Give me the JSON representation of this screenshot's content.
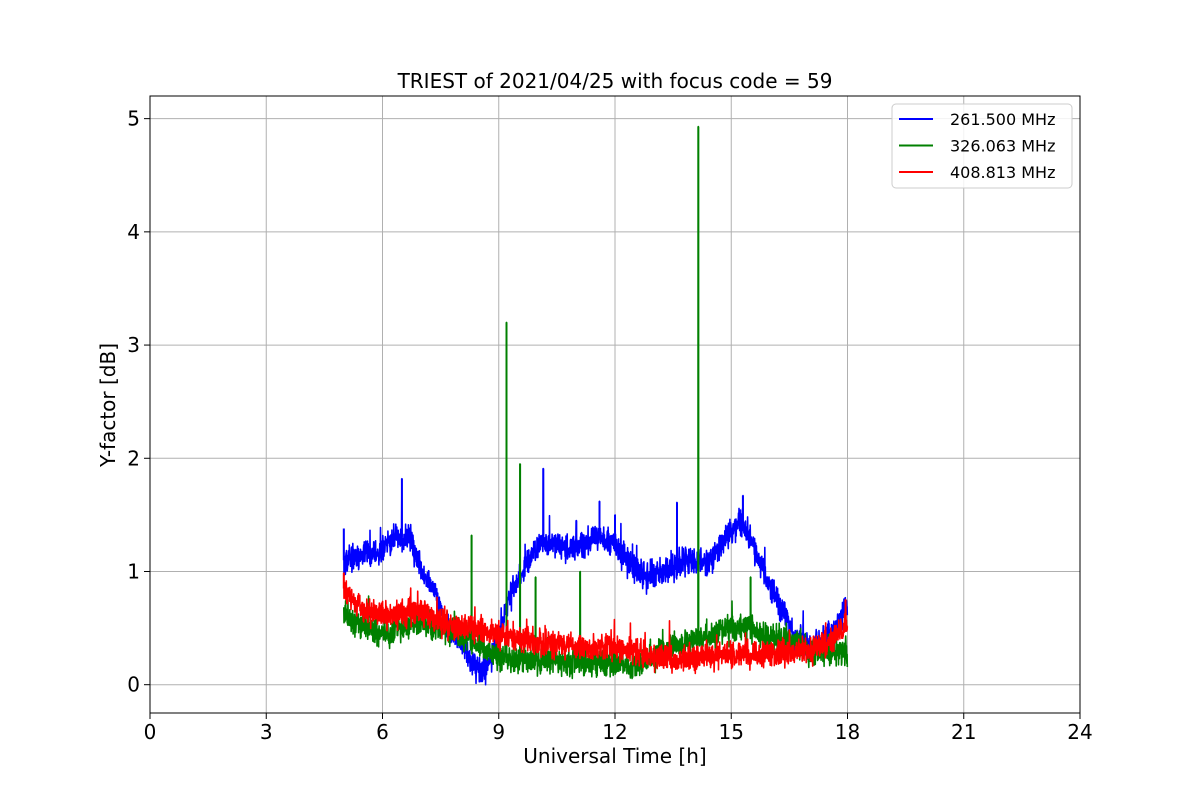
{
  "chart_data": {
    "type": "line",
    "title": "TRIEST of 2021/04/25 with focus code = 59",
    "xlabel": "Universal Time [h]",
    "ylabel": "Y-factor [dB]",
    "xlim": [
      0,
      24
    ],
    "ylim": [
      -0.25,
      5.2
    ],
    "xticks": [
      0,
      3,
      6,
      9,
      12,
      15,
      18,
      21,
      24
    ],
    "yticks": [
      0,
      1,
      2,
      3,
      4,
      5
    ],
    "grid": true,
    "legend_position": "top-right",
    "series": [
      {
        "name": "261.500 MHz",
        "color": "#0000ff",
        "noise": 0.09,
        "x": [
          5.0,
          5.3,
          5.7,
          6.0,
          6.4,
          6.7,
          7.0,
          7.3,
          7.6,
          8.0,
          8.3,
          8.6,
          9.0,
          9.3,
          9.7,
          10.0,
          10.4,
          10.8,
          11.2,
          11.6,
          12.0,
          12.4,
          12.8,
          13.2,
          13.6,
          14.0,
          14.4,
          14.8,
          15.2,
          15.5,
          15.8,
          16.2,
          16.6,
          17.0,
          17.4,
          17.8,
          18.0
        ],
        "y": [
          1.1,
          1.1,
          1.15,
          1.2,
          1.3,
          1.3,
          1.0,
          0.85,
          0.55,
          0.4,
          0.2,
          0.12,
          0.4,
          0.8,
          1.05,
          1.25,
          1.25,
          1.2,
          1.25,
          1.3,
          1.25,
          1.05,
          0.95,
          1.0,
          1.05,
          1.1,
          1.05,
          1.25,
          1.45,
          1.3,
          1.0,
          0.75,
          0.45,
          0.35,
          0.4,
          0.55,
          0.7
        ],
        "spikes": [
          [
            5.0,
            1.38
          ],
          [
            6.5,
            1.82
          ],
          [
            10.15,
            1.91
          ],
          [
            11.0,
            1.45
          ],
          [
            11.6,
            1.62
          ],
          [
            12.0,
            1.5
          ],
          [
            13.6,
            1.61
          ],
          [
            15.3,
            1.67
          ]
        ]
      },
      {
        "name": "326.063 MHz",
        "color": "#008000",
        "noise": 0.09,
        "x": [
          5.0,
          6.0,
          7.0,
          7.5,
          8.0,
          8.5,
          9.0,
          9.5,
          10.0,
          10.5,
          11.0,
          11.5,
          12.0,
          12.5,
          13.0,
          13.5,
          14.0,
          14.5,
          15.0,
          15.5,
          16.0,
          16.5,
          17.0,
          17.5,
          18.0
        ],
        "y": [
          0.6,
          0.45,
          0.55,
          0.5,
          0.45,
          0.35,
          0.25,
          0.22,
          0.2,
          0.22,
          0.2,
          0.2,
          0.18,
          0.17,
          0.25,
          0.35,
          0.4,
          0.42,
          0.5,
          0.5,
          0.4,
          0.4,
          0.3,
          0.3,
          0.3
        ],
        "spikes": [
          [
            8.3,
            1.32
          ],
          [
            9.2,
            3.2
          ],
          [
            9.55,
            1.95
          ],
          [
            9.95,
            0.95
          ],
          [
            11.1,
            1.0
          ],
          [
            14.15,
            4.93
          ],
          [
            15.5,
            0.95
          ]
        ]
      },
      {
        "name": "408.813 MHz",
        "color": "#ff0000",
        "noise": 0.09,
        "x": [
          5.0,
          5.3,
          6.0,
          7.0,
          7.5,
          8.0,
          8.5,
          9.0,
          9.5,
          10.0,
          11.0,
          12.0,
          12.5,
          13.0,
          13.5,
          14.0,
          15.0,
          16.0,
          17.0,
          17.5,
          18.0
        ],
        "y": [
          0.85,
          0.7,
          0.6,
          0.65,
          0.55,
          0.5,
          0.5,
          0.45,
          0.4,
          0.37,
          0.33,
          0.33,
          0.3,
          0.25,
          0.22,
          0.25,
          0.27,
          0.27,
          0.3,
          0.35,
          0.55
        ],
        "spikes": [
          [
            5.0,
            0.99
          ],
          [
            17.95,
            0.75
          ]
        ]
      }
    ]
  }
}
